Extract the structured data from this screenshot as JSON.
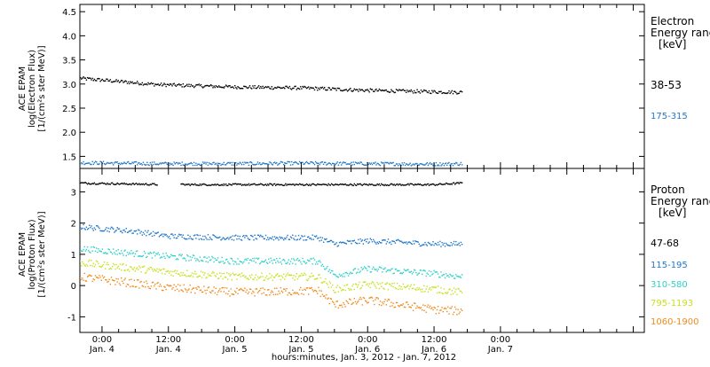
{
  "charts": {
    "xaxis": {
      "title": "hours:minutes, Jan.  3, 2012 - Jan.  7, 2012",
      "hour_ticks": [
        "0:00",
        "12:00",
        "0:00",
        "12:00",
        "0:00",
        "12:00",
        "0:00"
      ],
      "day_ticks": [
        "Jan. 4",
        "Jan. 4",
        "Jan. 5",
        "Jan. 5",
        "Jan. 6",
        "Jan. 6",
        "Jan. 7"
      ]
    },
    "electron": {
      "ylabel": [
        "ACE EPAM",
        "log(Electron Flux)",
        "[1/(cm²s ster MeV)]"
      ],
      "legend_title": [
        "Electron",
        "Energy ranges",
        "[keV]"
      ],
      "yticks": [
        "1.5",
        "2.0",
        "2.5",
        "3.0",
        "3.5",
        "4.0",
        "4.5"
      ],
      "series": [
        {
          "name": "38-53",
          "color": "#000000"
        },
        {
          "name": "175-315",
          "color": "#1f77c8"
        }
      ]
    },
    "proton": {
      "ylabel": [
        "ACE EPAM",
        "log(Proton Flux)",
        "[1/(cm²s ster MeV)]"
      ],
      "legend_title": [
        "Proton",
        "Energy ranges",
        "[keV]"
      ],
      "yticks": [
        "-1",
        "0",
        "1",
        "2",
        "3"
      ],
      "series": [
        {
          "name": "47-68",
          "color": "#000000"
        },
        {
          "name": "115-195",
          "color": "#1f77c8"
        },
        {
          "name": "310-580",
          "color": "#2fd0c8"
        },
        {
          "name": "795-1193",
          "color": "#c8e020"
        },
        {
          "name": "1060-1900",
          "color": "#f08a1c"
        }
      ]
    }
  },
  "chart_data": [
    {
      "type": "scatter",
      "xlabel": "hours:minutes, Jan.  3, 2012 - Jan.  7, 2012",
      "ylabel": "ACE EPAM log(Electron Flux) [1/(cm²s ster MeV)]",
      "x_range_hours_since_jan3_0000": [
        20,
        122
      ],
      "ylim": [
        1.25,
        4.65
      ],
      "grid": false,
      "legend_position": "right",
      "series": [
        {
          "name": "38-53",
          "x": [
            "Jan 3 20:00",
            "Jan 4 10:00",
            "Jan 5 00:00",
            "Jan 5 12:00",
            "Jan 6 00:00",
            "Jan 6 12:00",
            "Jan 6 17:00"
          ],
          "y": [
            3.13,
            3.0,
            2.95,
            2.93,
            2.88,
            2.85,
            2.84
          ]
        },
        {
          "name": "175-315",
          "x": [
            "Jan 3 20:00",
            "Jan 4 10:00",
            "Jan 5 00:00",
            "Jan 5 12:00",
            "Jan 6 00:00",
            "Jan 6 12:00",
            "Jan 6 17:00"
          ],
          "y": [
            1.38,
            1.36,
            1.36,
            1.37,
            1.36,
            1.35,
            1.36
          ]
        }
      ]
    },
    {
      "type": "scatter",
      "xlabel": "hours:minutes, Jan.  3, 2012 - Jan.  7, 2012",
      "ylabel": "ACE EPAM log(Proton Flux) [1/(cm²s ster MeV)]",
      "x_range_hours_since_jan3_0000": [
        20,
        122
      ],
      "ylim": [
        -1.5,
        3.75
      ],
      "grid": false,
      "legend_position": "right",
      "series": [
        {
          "name": "47-68",
          "x": [
            "Jan 3 20:00",
            "Jan 4 12:00",
            "Jan 5 00:00",
            "Jan 5 12:00",
            "Jan 6 00:00",
            "Jan 6 12:00",
            "Jan 6 17:00"
          ],
          "y": [
            3.3,
            3.25,
            3.25,
            3.25,
            3.25,
            3.25,
            3.3
          ]
        },
        {
          "name": "115-195",
          "x": [
            "Jan 3 20:00",
            "Jan 4 06:00",
            "Jan 4 12:00",
            "Jan 5 00:00",
            "Jan 5 15:00",
            "Jan 5 18:00",
            "Jan 6 00:00",
            "Jan 6 12:00",
            "Jan 6 17:00"
          ],
          "y": [
            1.9,
            1.75,
            1.6,
            1.55,
            1.55,
            1.35,
            1.45,
            1.35,
            1.35
          ]
        },
        {
          "name": "310-580",
          "x": [
            "Jan 3 20:00",
            "Jan 4 12:00",
            "Jan 5 00:00",
            "Jan 5 15:00",
            "Jan 5 18:00",
            "Jan 6 00:00",
            "Jan 6 12:00",
            "Jan 6 17:00"
          ],
          "y": [
            1.2,
            0.95,
            0.8,
            0.8,
            0.35,
            0.55,
            0.4,
            0.3
          ]
        },
        {
          "name": "795-1193",
          "x": [
            "Jan 3 20:00",
            "Jan 4 12:00",
            "Jan 5 00:00",
            "Jan 5 15:00",
            "Jan 5 18:00",
            "Jan 6 00:00",
            "Jan 6 12:00",
            "Jan 6 17:00"
          ],
          "y": [
            0.75,
            0.45,
            0.3,
            0.3,
            -0.1,
            0.05,
            -0.1,
            -0.2
          ]
        },
        {
          "name": "1060-1900",
          "x": [
            "Jan 3 20:00",
            "Jan 4 12:00",
            "Jan 5 00:00",
            "Jan 5 15:00",
            "Jan 5 18:00",
            "Jan 6 00:00",
            "Jan 6 12:00",
            "Jan 6 17:00"
          ],
          "y": [
            0.3,
            -0.05,
            -0.2,
            -0.15,
            -0.6,
            -0.45,
            -0.75,
            -0.8
          ]
        }
      ]
    }
  ]
}
